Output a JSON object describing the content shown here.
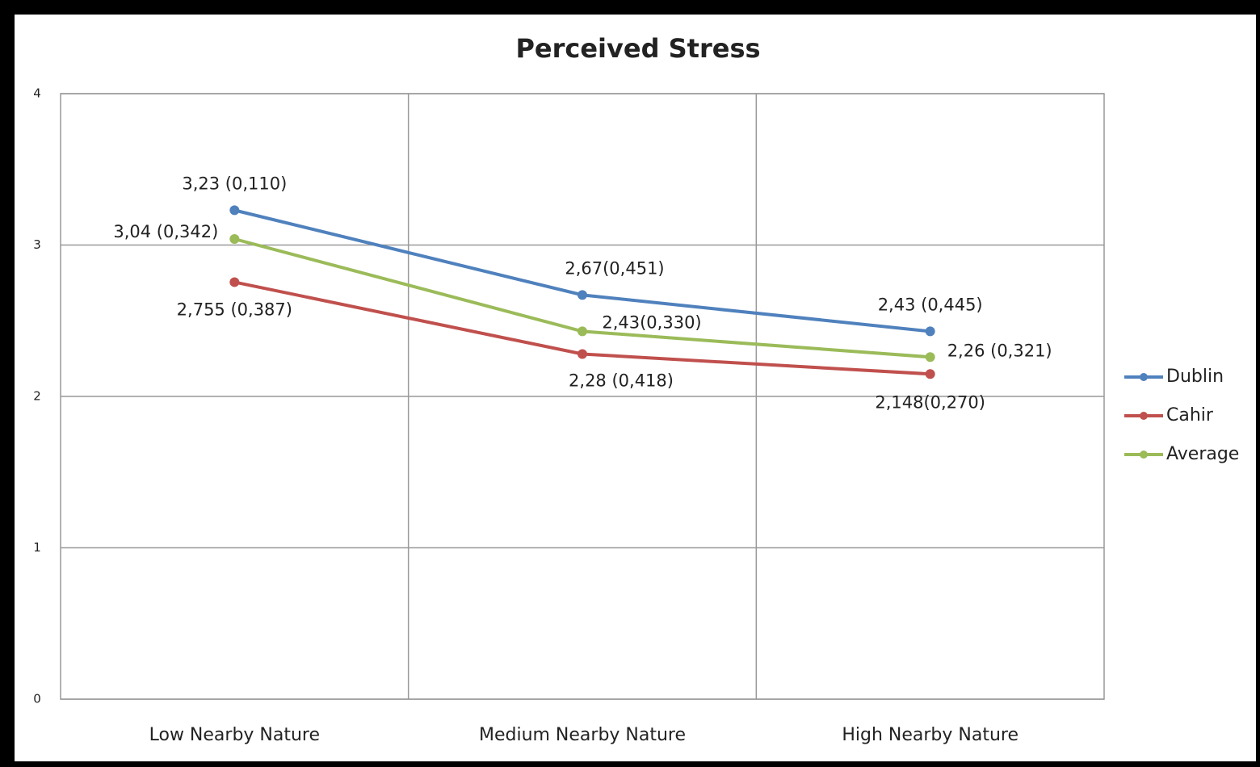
{
  "chart_data": {
    "type": "line",
    "title": "Perceived Stress",
    "categories": [
      "Low Nearby Nature",
      "Medium Nearby Nature",
      "High Nearby Nature"
    ],
    "series": [
      {
        "name": "Dublin",
        "color": "#4f81bd",
        "values": [
          3.23,
          2.67,
          2.43
        ],
        "value_labels": [
          "3,23 (0,110)",
          "2,67(0,451)",
          "2,43 (0,445)"
        ]
      },
      {
        "name": "Cahir",
        "color": "#c0504d",
        "values": [
          2.755,
          2.28,
          2.148
        ],
        "value_labels": [
          "2,755 (0,387)",
          "2,28 (0,418)",
          "2,148(0,270)"
        ]
      },
      {
        "name": "Average",
        "color": "#9bbb59",
        "values": [
          3.04,
          2.43,
          2.26
        ],
        "value_labels": [
          "3,04 (0,342)",
          "2,43(0,330)",
          "2,26 (0,321)"
        ]
      }
    ],
    "ylim": [
      0,
      4
    ],
    "yticks": [
      0,
      1,
      2,
      3,
      4
    ],
    "grid": true,
    "legend": "right"
  }
}
